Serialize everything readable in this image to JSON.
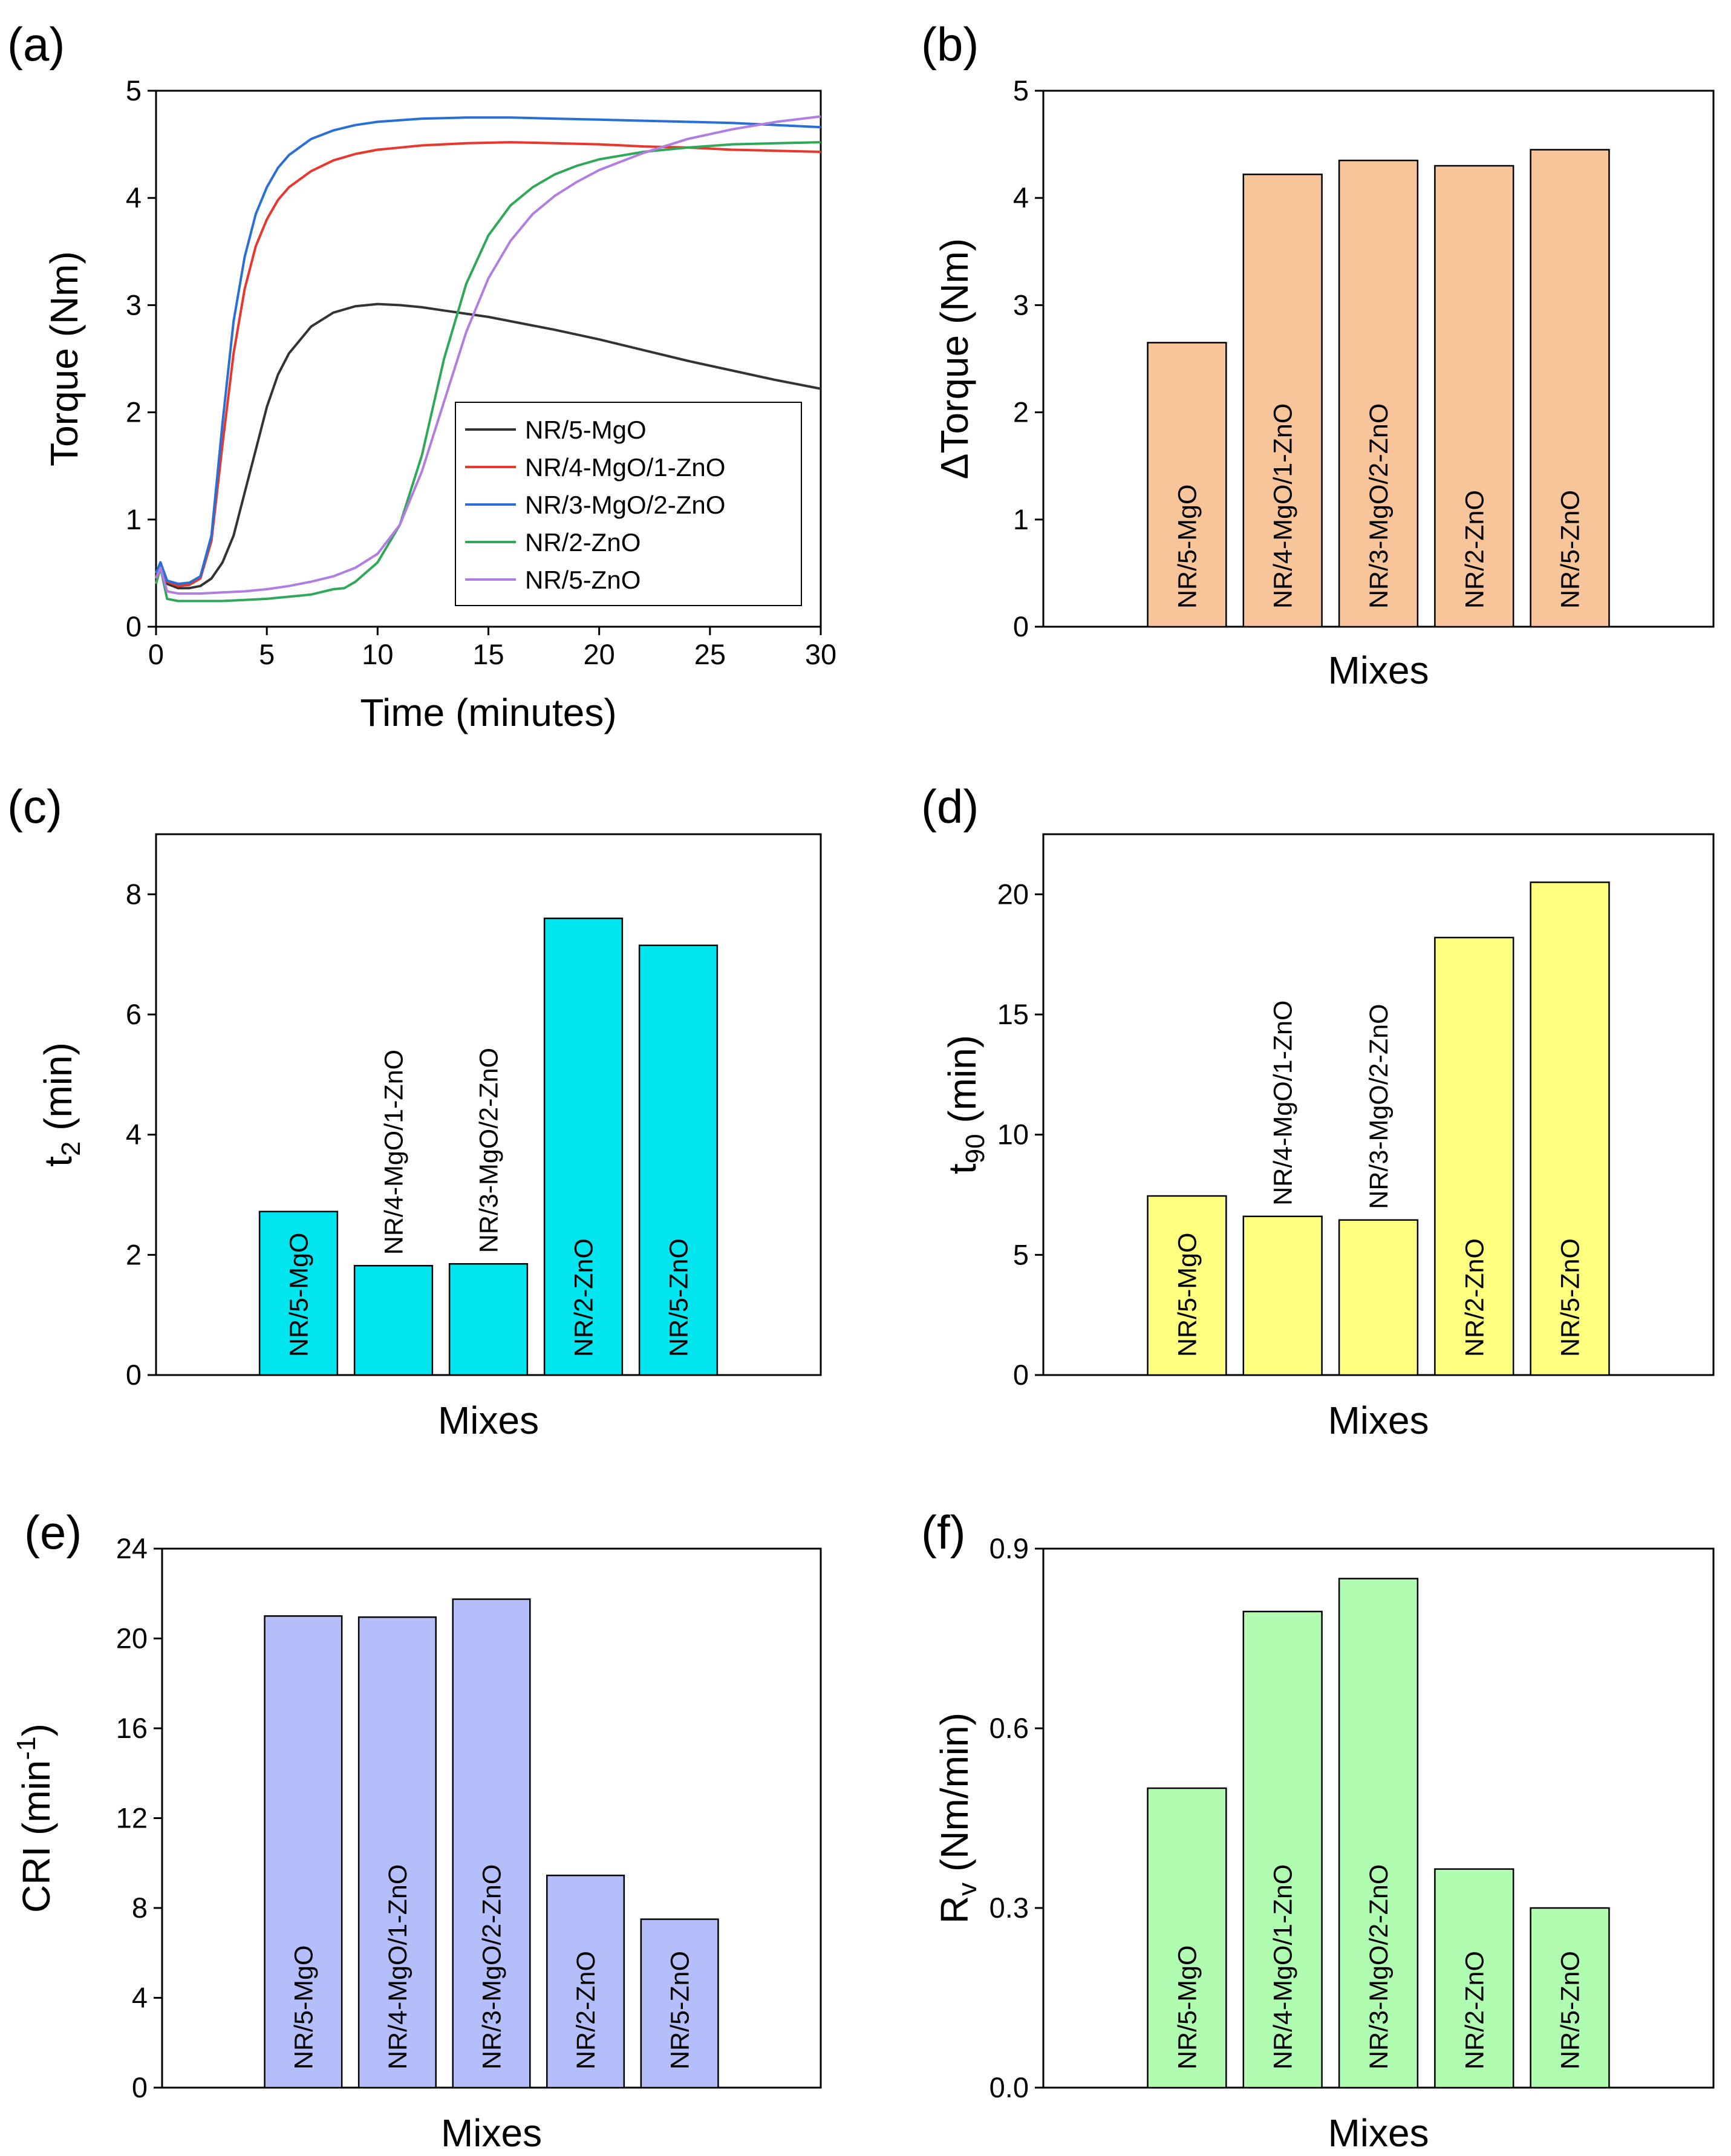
{
  "chart_data": [
    {
      "panel": "(a)",
      "type": "line",
      "xlabel": "Time (minutes)",
      "ylabel": "Torque (Nm)",
      "xlim": [
        0,
        30
      ],
      "ylim": [
        0,
        5
      ],
      "xticks": [
        0,
        5,
        10,
        15,
        20,
        25,
        30
      ],
      "yticks": [
        0,
        1,
        2,
        3,
        4,
        5
      ],
      "legend_position": "bottom-right",
      "series": [
        {
          "name": "NR/5-MgO",
          "color": "#333333",
          "x": [
            0,
            0.2,
            0.5,
            1,
            1.5,
            2,
            2.5,
            3,
            3.5,
            4,
            4.5,
            5,
            5.5,
            6,
            7,
            8,
            9,
            10,
            11,
            12,
            13,
            14,
            15,
            16,
            17,
            18,
            20,
            22,
            24,
            26,
            28,
            30
          ],
          "y": [
            0.45,
            0.6,
            0.4,
            0.36,
            0.36,
            0.38,
            0.45,
            0.6,
            0.85,
            1.25,
            1.65,
            2.05,
            2.35,
            2.55,
            2.8,
            2.93,
            2.99,
            3.01,
            3.0,
            2.98,
            2.95,
            2.92,
            2.89,
            2.85,
            2.81,
            2.77,
            2.68,
            2.58,
            2.48,
            2.39,
            2.3,
            2.22
          ]
        },
        {
          "name": "NR/4-MgO/1-ZnO",
          "color": "#e8372e",
          "x": [
            0,
            0.2,
            0.5,
            1,
            1.5,
            2,
            2.5,
            3,
            3.5,
            4,
            4.5,
            5,
            5.5,
            6,
            7,
            8,
            9,
            10,
            12,
            14,
            16,
            18,
            20,
            22,
            24,
            26,
            28,
            30
          ],
          "y": [
            0.45,
            0.6,
            0.42,
            0.38,
            0.39,
            0.45,
            0.8,
            1.7,
            2.55,
            3.15,
            3.55,
            3.8,
            3.98,
            4.1,
            4.25,
            4.35,
            4.41,
            4.45,
            4.49,
            4.51,
            4.52,
            4.51,
            4.5,
            4.48,
            4.47,
            4.45,
            4.44,
            4.43
          ]
        },
        {
          "name": "NR/3-MgO/2-ZnO",
          "color": "#2a6fd6",
          "x": [
            0,
            0.2,
            0.5,
            1,
            1.5,
            2,
            2.5,
            3,
            3.5,
            4,
            4.5,
            5,
            5.5,
            6,
            7,
            8,
            9,
            10,
            12,
            14,
            16,
            18,
            20,
            22,
            24,
            26,
            28,
            30
          ],
          "y": [
            0.5,
            0.6,
            0.43,
            0.4,
            0.41,
            0.47,
            0.85,
            1.9,
            2.85,
            3.45,
            3.85,
            4.1,
            4.28,
            4.4,
            4.55,
            4.63,
            4.68,
            4.71,
            4.74,
            4.75,
            4.75,
            4.74,
            4.73,
            4.72,
            4.71,
            4.7,
            4.68,
            4.66
          ]
        },
        {
          "name": "NR/2-ZnO",
          "color": "#2fa85a",
          "x": [
            0,
            0.2,
            0.5,
            1,
            2,
            3,
            4,
            5,
            6,
            7,
            8,
            8.5,
            9,
            10,
            11,
            12,
            13,
            14,
            15,
            16,
            17,
            18,
            19,
            20,
            22,
            24,
            26,
            28,
            30
          ],
          "y": [
            0.4,
            0.55,
            0.26,
            0.24,
            0.24,
            0.24,
            0.25,
            0.26,
            0.28,
            0.3,
            0.35,
            0.36,
            0.42,
            0.6,
            0.95,
            1.6,
            2.5,
            3.2,
            3.65,
            3.93,
            4.1,
            4.22,
            4.3,
            4.36,
            4.43,
            4.47,
            4.5,
            4.51,
            4.52
          ]
        },
        {
          "name": "NR/5-ZnO",
          "color": "#b07ee0",
          "x": [
            0,
            0.2,
            0.5,
            1,
            2,
            3,
            4,
            5,
            6,
            7,
            8,
            9,
            10,
            11,
            12,
            13,
            14,
            15,
            16,
            17,
            18,
            19,
            20,
            22,
            24,
            26,
            28,
            30
          ],
          "y": [
            0.45,
            0.55,
            0.33,
            0.31,
            0.31,
            0.32,
            0.33,
            0.35,
            0.38,
            0.42,
            0.47,
            0.55,
            0.68,
            0.95,
            1.45,
            2.1,
            2.75,
            3.25,
            3.6,
            3.85,
            4.02,
            4.15,
            4.26,
            4.42,
            4.55,
            4.64,
            4.71,
            4.76
          ]
        }
      ]
    },
    {
      "panel": "(b)",
      "type": "bar",
      "xlabel": "Mixes",
      "ylabel": "ΔTorque (Nm)",
      "ylim": [
        0,
        5
      ],
      "yticks": [
        0,
        1,
        2,
        3,
        4,
        5
      ],
      "tick_labels": [
        "0",
        "1",
        "2",
        "3",
        "4",
        "5"
      ],
      "color": "#f8c59a",
      "label_placement": "inside",
      "categories": [
        "NR/5-MgO",
        "NR/4-MgO/1-ZnO",
        "NR/3-MgO/2-ZnO",
        "NR/2-ZnO",
        "NR/5-ZnO"
      ],
      "values": [
        2.65,
        4.22,
        4.35,
        4.3,
        4.45
      ]
    },
    {
      "panel": "(c)",
      "type": "bar",
      "xlabel": "Mixes",
      "ylabel": "t",
      "ylabel_sub": "2",
      "ylabel_suffix": " (min)",
      "ylim": [
        0,
        9
      ],
      "yticks": [
        0,
        2,
        4,
        6,
        8
      ],
      "tick_labels": [
        "0",
        "2",
        "4",
        "6",
        "8"
      ],
      "color": "#00e5ee",
      "label_placement": "mixed",
      "categories": [
        "NR/5-MgO",
        "NR/4-MgO/1-ZnO",
        "NR/3-MgO/2-ZnO",
        "NR/2-ZnO",
        "NR/5-ZnO"
      ],
      "values": [
        2.72,
        1.82,
        1.85,
        7.6,
        7.15
      ]
    },
    {
      "panel": "(d)",
      "type": "bar",
      "xlabel": "Mixes",
      "ylabel": "t",
      "ylabel_sub": "90",
      "ylabel_suffix": " (min)",
      "ylim": [
        0,
        22.5
      ],
      "yticks": [
        0,
        5,
        10,
        15,
        20
      ],
      "tick_labels": [
        "0",
        "5",
        "10",
        "15",
        "20"
      ],
      "color": "#ffff80",
      "label_placement": "mixed",
      "categories": [
        "NR/5-MgO",
        "NR/4-MgO/1-ZnO",
        "NR/3-MgO/2-ZnO",
        "NR/2-ZnO",
        "NR/5-ZnO"
      ],
      "values": [
        7.45,
        6.6,
        6.45,
        18.2,
        20.5
      ]
    },
    {
      "panel": "(e)",
      "type": "bar",
      "xlabel": "Mixes",
      "ylabel": "CRI (min",
      "ylabel_sup": "-1",
      "ylabel_suffix": ")",
      "ylim": [
        0,
        24
      ],
      "yticks": [
        0,
        4,
        8,
        12,
        16,
        20,
        24
      ],
      "tick_labels": [
        "0",
        "4",
        "8",
        "12",
        "16",
        "20",
        "24"
      ],
      "color": "#b4befa",
      "label_placement": "inside",
      "categories": [
        "NR/5-MgO",
        "NR/4-MgO/1-ZnO",
        "NR/3-MgO/2-ZnO",
        "NR/2-ZnO",
        "NR/5-ZnO"
      ],
      "values": [
        21.0,
        20.95,
        21.75,
        9.45,
        7.5
      ]
    },
    {
      "panel": "(f)",
      "type": "bar",
      "xlabel": "Mixes",
      "ylabel": "R",
      "ylabel_sub": "v",
      "ylabel_suffix": " (Nm/min)",
      "ylim": [
        0,
        0.9
      ],
      "yticks": [
        0,
        0.3,
        0.6,
        0.9
      ],
      "tick_labels": [
        "0.0",
        "0.3",
        "0.6",
        "0.9"
      ],
      "color": "#b0fcb0",
      "label_placement": "inside",
      "categories": [
        "NR/5-MgO",
        "NR/4-MgO/1-ZnO",
        "NR/3-MgO/2-ZnO",
        "NR/2-ZnO",
        "NR/5-ZnO"
      ],
      "values": [
        0.5,
        0.795,
        0.85,
        0.365,
        0.3
      ]
    }
  ]
}
